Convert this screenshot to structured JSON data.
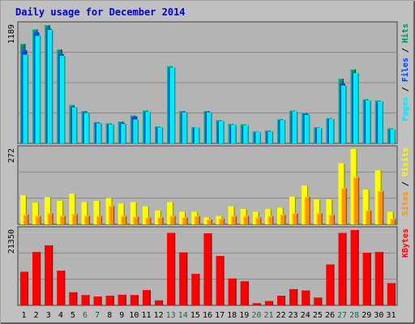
{
  "title": "Daily usage for December 2014",
  "colors": {
    "background": "#c0c0c0",
    "border_light": "#ffffff",
    "border_dark": "#808080",
    "plot_bg": "#b4b4b4",
    "grid": "#888888",
    "title": "#0000cc",
    "hits": "#008a6a",
    "files": "#0040ff",
    "pages": "#00e8ff",
    "visits": "#ffff00",
    "sites": "#ff9000",
    "kbytes": "#ff0000",
    "weekday_text": "#000000",
    "weekend_text": "#007050"
  },
  "chart_data": [
    {
      "type": "bar",
      "panel": "hits-files-pages",
      "y_max_label": "1189",
      "ylim": [
        0,
        1189
      ],
      "legend": [
        "Pages",
        "Files",
        "Hits"
      ],
      "legend_separator": " / ",
      "categories": [
        "1",
        "2",
        "3",
        "4",
        "5",
        "6",
        "7",
        "8",
        "9",
        "10",
        "11",
        "12",
        "13",
        "14",
        "15",
        "16",
        "17",
        "18",
        "19",
        "20",
        "21",
        "22",
        "23",
        "24",
        "25",
        "26",
        "27",
        "28",
        "29",
        "30",
        "31"
      ],
      "series": [
        {
          "name": "Hits",
          "values": [
            1000,
            1145,
            1189,
            945,
            385,
            325,
            213,
            200,
            220,
            280,
            330,
            170,
            775,
            325,
            163,
            325,
            233,
            195,
            190,
            118,
            128,
            243,
            330,
            305,
            162,
            253,
            650,
            743,
            443,
            430,
            150
          ]
        },
        {
          "name": "Files",
          "values": [
            935,
            1115,
            1150,
            900,
            363,
            310,
            205,
            193,
            205,
            270,
            315,
            163,
            760,
            315,
            160,
            315,
            225,
            187,
            180,
            115,
            120,
            235,
            320,
            295,
            153,
            245,
            600,
            705,
            430,
            420,
            140
          ]
        },
        {
          "name": "Pages",
          "values": [
            890,
            1080,
            1140,
            880,
            360,
            305,
            200,
            190,
            195,
            240,
            315,
            160,
            760,
            310,
            160,
            310,
            223,
            185,
            180,
            112,
            118,
            233,
            320,
            285,
            155,
            245,
            580,
            705,
            430,
            420,
            140
          ]
        }
      ]
    },
    {
      "type": "bar",
      "panel": "visits-sites",
      "y_max_label": "272",
      "ylim": [
        0,
        272
      ],
      "legend": [
        "Sites",
        "Visits"
      ],
      "legend_separator": " / ",
      "categories": [
        "1",
        "2",
        "3",
        "4",
        "5",
        "6",
        "7",
        "8",
        "9",
        "10",
        "11",
        "12",
        "13",
        "14",
        "15",
        "16",
        "17",
        "18",
        "19",
        "20",
        "21",
        "22",
        "23",
        "24",
        "25",
        "26",
        "27",
        "28",
        "29",
        "30",
        "31"
      ],
      "series": [
        {
          "name": "Visits",
          "values": [
            105,
            78,
            98,
            85,
            110,
            80,
            85,
            95,
            75,
            80,
            65,
            50,
            80,
            45,
            45,
            25,
            30,
            65,
            55,
            45,
            55,
            60,
            100,
            140,
            90,
            90,
            220,
            272,
            125,
            195,
            45
          ]
        },
        {
          "name": "Sites",
          "values": [
            35,
            30,
            40,
            30,
            37,
            30,
            30,
            67,
            30,
            28,
            25,
            25,
            30,
            25,
            30,
            18,
            20,
            30,
            30,
            25,
            30,
            35,
            40,
            100,
            40,
            35,
            130,
            170,
            50,
            120,
            20
          ]
        }
      ]
    },
    {
      "type": "bar",
      "panel": "kbytes",
      "y_max_label": "21350",
      "ylim": [
        0,
        21350
      ],
      "legend": [
        "KBytes"
      ],
      "categories": [
        "1",
        "2",
        "3",
        "4",
        "5",
        "6",
        "7",
        "8",
        "9",
        "10",
        "11",
        "12",
        "13",
        "14",
        "15",
        "16",
        "17",
        "18",
        "19",
        "20",
        "21",
        "22",
        "23",
        "24",
        "25",
        "26",
        "27",
        "28",
        "29",
        "30",
        "31"
      ],
      "series": [
        {
          "name": "KBytes",
          "values": [
            9500,
            15100,
            17000,
            9800,
            3700,
            2900,
            2500,
            2700,
            3000,
            2900,
            4300,
            1400,
            20500,
            15000,
            8900,
            20400,
            14000,
            7600,
            6800,
            600,
            1200,
            2700,
            4600,
            4200,
            2200,
            11600,
            20500,
            21350,
            14900,
            15100,
            6300
          ]
        }
      ]
    }
  ],
  "days": [
    {
      "label": "1",
      "weekend": false
    },
    {
      "label": "2",
      "weekend": false
    },
    {
      "label": "3",
      "weekend": false
    },
    {
      "label": "4",
      "weekend": false
    },
    {
      "label": "5",
      "weekend": false
    },
    {
      "label": "6",
      "weekend": true
    },
    {
      "label": "7",
      "weekend": true
    },
    {
      "label": "8",
      "weekend": false
    },
    {
      "label": "9",
      "weekend": false
    },
    {
      "label": "10",
      "weekend": false
    },
    {
      "label": "11",
      "weekend": false
    },
    {
      "label": "12",
      "weekend": false
    },
    {
      "label": "13",
      "weekend": true
    },
    {
      "label": "14",
      "weekend": true
    },
    {
      "label": "15",
      "weekend": false
    },
    {
      "label": "16",
      "weekend": false
    },
    {
      "label": "17",
      "weekend": false
    },
    {
      "label": "18",
      "weekend": false
    },
    {
      "label": "19",
      "weekend": false
    },
    {
      "label": "20",
      "weekend": true
    },
    {
      "label": "21",
      "weekend": true
    },
    {
      "label": "22",
      "weekend": false
    },
    {
      "label": "23",
      "weekend": false
    },
    {
      "label": "24",
      "weekend": false
    },
    {
      "label": "25",
      "weekend": false
    },
    {
      "label": "26",
      "weekend": false
    },
    {
      "label": "27",
      "weekend": true
    },
    {
      "label": "28",
      "weekend": true
    },
    {
      "label": "29",
      "weekend": false
    },
    {
      "label": "30",
      "weekend": false
    },
    {
      "label": "31",
      "weekend": false
    }
  ]
}
